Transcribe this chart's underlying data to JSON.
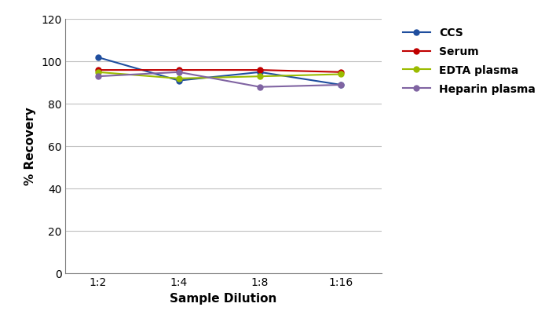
{
  "xlabel": "Sample Dilution",
  "ylabel": "% Recovery",
  "x_labels": [
    "1:2",
    "1:4",
    "1:8",
    "1:16"
  ],
  "x_values": [
    1,
    2,
    3,
    4
  ],
  "series": [
    {
      "label": "CCS",
      "color": "#1f4e9e",
      "values": [
        102,
        91,
        95,
        89
      ]
    },
    {
      "label": "Serum",
      "color": "#c00000",
      "values": [
        96,
        96,
        96,
        95
      ]
    },
    {
      "label": "EDTA plasma",
      "color": "#9bbb00",
      "values": [
        95,
        92,
        93,
        94
      ]
    },
    {
      "label": "Heparin plasma",
      "color": "#8064a2",
      "values": [
        93,
        95,
        88,
        89
      ]
    }
  ],
  "ylim": [
    0,
    120
  ],
  "yticks": [
    0,
    20,
    40,
    60,
    80,
    100,
    120
  ],
  "grid_color": "#c0c0c0",
  "background_color": "#ffffff",
  "marker": "o",
  "markersize": 5,
  "linewidth": 1.5,
  "tick_fontsize": 10,
  "label_fontsize": 11,
  "legend_fontsize": 10
}
